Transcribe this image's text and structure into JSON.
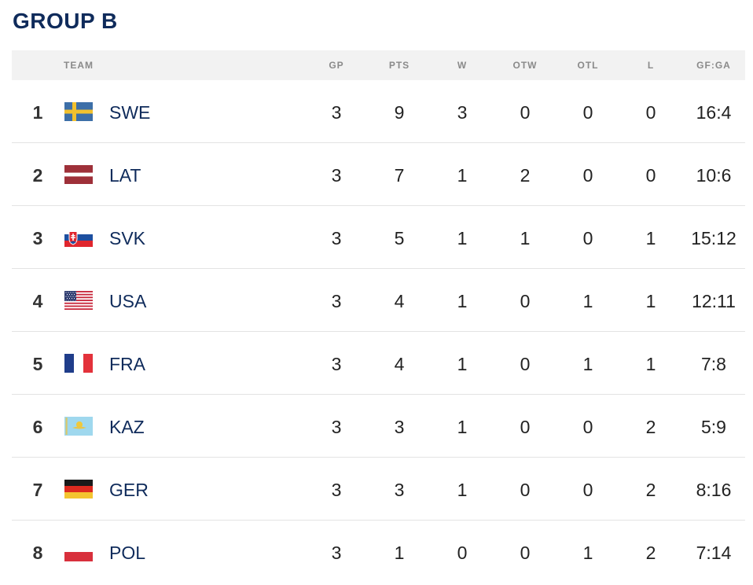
{
  "title": "GROUP B",
  "columns": {
    "team": "TEAM",
    "gp": "GP",
    "pts": "PTS",
    "w": "W",
    "otw": "OTW",
    "otl": "OTL",
    "l": "L",
    "gfga": "GF:GA"
  },
  "rows": [
    {
      "rank": "1",
      "team": "SWE",
      "flag": "sweden-flag-icon",
      "gp": "3",
      "pts": "9",
      "w": "3",
      "otw": "0",
      "otl": "0",
      "l": "0",
      "gfga": "16:4"
    },
    {
      "rank": "2",
      "team": "LAT",
      "flag": "latvia-flag-icon",
      "gp": "3",
      "pts": "7",
      "w": "1",
      "otw": "2",
      "otl": "0",
      "l": "0",
      "gfga": "10:6"
    },
    {
      "rank": "3",
      "team": "SVK",
      "flag": "slovakia-flag-icon",
      "gp": "3",
      "pts": "5",
      "w": "1",
      "otw": "1",
      "otl": "0",
      "l": "1",
      "gfga": "15:12"
    },
    {
      "rank": "4",
      "team": "USA",
      "flag": "usa-flag-icon",
      "gp": "3",
      "pts": "4",
      "w": "1",
      "otw": "0",
      "otl": "1",
      "l": "1",
      "gfga": "12:11"
    },
    {
      "rank": "5",
      "team": "FRA",
      "flag": "france-flag-icon",
      "gp": "3",
      "pts": "4",
      "w": "1",
      "otw": "0",
      "otl": "1",
      "l": "1",
      "gfga": "7:8"
    },
    {
      "rank": "6",
      "team": "KAZ",
      "flag": "kazakhstan-flag-icon",
      "gp": "3",
      "pts": "3",
      "w": "1",
      "otw": "0",
      "otl": "0",
      "l": "2",
      "gfga": "5:9"
    },
    {
      "rank": "7",
      "team": "GER",
      "flag": "germany-flag-icon",
      "gp": "3",
      "pts": "3",
      "w": "1",
      "otw": "0",
      "otl": "0",
      "l": "2",
      "gfga": "8:16"
    },
    {
      "rank": "8",
      "team": "POL",
      "flag": "poland-flag-icon",
      "gp": "3",
      "pts": "1",
      "w": "0",
      "otw": "0",
      "otl": "1",
      "l": "2",
      "gfga": "7:14"
    }
  ],
  "colors": {
    "title": "#0f2b5b",
    "header_bg": "#f2f2f2",
    "header_text": "#8a8a8a",
    "divider": "#e3e3e3"
  }
}
